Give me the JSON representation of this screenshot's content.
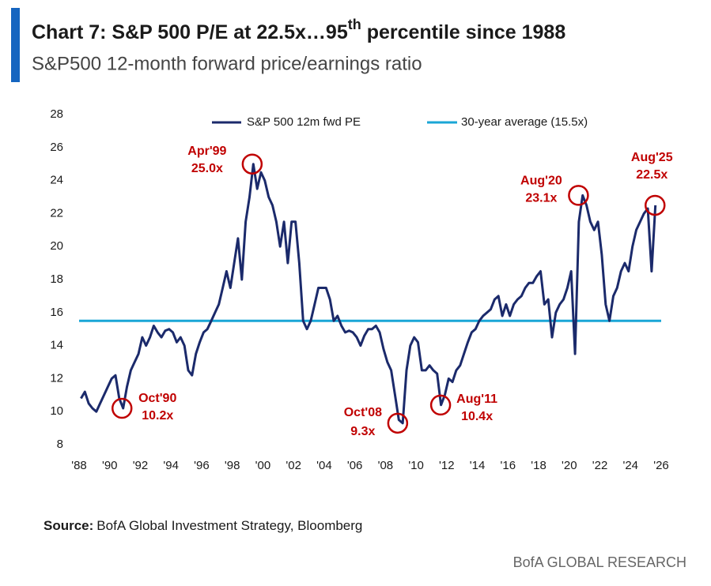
{
  "chart_data": {
    "type": "line",
    "title": [
      "Chart 7: S&P 500 P/E at 22.5x…95",
      "th",
      " percentile since 1988"
    ],
    "subtitle": "S&P500 12-month forward price/earnings ratio",
    "source": {
      "label": "Source:",
      "text": "BofA Global Investment Strategy, Bloomberg"
    },
    "brand": "BofA GLOBAL RESEARCH",
    "xlim": [
      1988,
      2026
    ],
    "xticks": [
      {
        "value": 1988,
        "label": "'88"
      },
      {
        "value": 1990,
        "label": "'90"
      },
      {
        "value": 1992,
        "label": "'92"
      },
      {
        "value": 1994,
        "label": "'94"
      },
      {
        "value": 1996,
        "label": "'96"
      },
      {
        "value": 1998,
        "label": "'98"
      },
      {
        "value": 2000,
        "label": "'00"
      },
      {
        "value": 2002,
        "label": "'02"
      },
      {
        "value": 2004,
        "label": "'04"
      },
      {
        "value": 2006,
        "label": "'06"
      },
      {
        "value": 2008,
        "label": "'08"
      },
      {
        "value": 2010,
        "label": "'10"
      },
      {
        "value": 2012,
        "label": "'12"
      },
      {
        "value": 2014,
        "label": "'14"
      },
      {
        "value": 2016,
        "label": "'16"
      },
      {
        "value": 2018,
        "label": "'18"
      },
      {
        "value": 2020,
        "label": "'20"
      },
      {
        "value": 2022,
        "label": "'22"
      },
      {
        "value": 2024,
        "label": "'24"
      },
      {
        "value": 2026,
        "label": "'26"
      }
    ],
    "ylim": [
      8,
      28
    ],
    "yticks": [
      8,
      10,
      12,
      14,
      16,
      18,
      20,
      22,
      24,
      26,
      28
    ],
    "grid": false,
    "series": [
      {
        "name": "S&P 500 12m fwd PE",
        "color": "#1b2a6b",
        "x": [
          1988.125,
          1988.375,
          1988.625,
          1988.875,
          1989.125,
          1989.375,
          1989.625,
          1989.875,
          1990.125,
          1990.375,
          1990.625,
          1990.875,
          1991.125,
          1991.375,
          1991.625,
          1991.875,
          1992.125,
          1992.375,
          1992.625,
          1992.875,
          1993.125,
          1993.375,
          1993.625,
          1993.875,
          1994.125,
          1994.375,
          1994.625,
          1994.875,
          1995.125,
          1995.375,
          1995.625,
          1995.875,
          1996.125,
          1996.375,
          1996.625,
          1996.875,
          1997.125,
          1997.375,
          1997.625,
          1997.875,
          1998.125,
          1998.375,
          1998.625,
          1998.875,
          1999.125,
          1999.375,
          1999.625,
          1999.875,
          2000.125,
          2000.375,
          2000.625,
          2000.875,
          2001.125,
          2001.375,
          2001.625,
          2001.875,
          2002.125,
          2002.375,
          2002.625,
          2002.875,
          2003.125,
          2003.375,
          2003.625,
          2003.875,
          2004.125,
          2004.375,
          2004.625,
          2004.875,
          2005.125,
          2005.375,
          2005.625,
          2005.875,
          2006.125,
          2006.375,
          2006.625,
          2006.875,
          2007.125,
          2007.375,
          2007.625,
          2007.875,
          2008.125,
          2008.375,
          2008.625,
          2008.875,
          2009.125,
          2009.375,
          2009.625,
          2009.875,
          2010.125,
          2010.375,
          2010.625,
          2010.875,
          2011.125,
          2011.375,
          2011.625,
          2011.875,
          2012.125,
          2012.375,
          2012.625,
          2012.875,
          2013.125,
          2013.375,
          2013.625,
          2013.875,
          2014.125,
          2014.375,
          2014.625,
          2014.875,
          2015.125,
          2015.375,
          2015.625,
          2015.875,
          2016.125,
          2016.375,
          2016.625,
          2016.875,
          2017.125,
          2017.375,
          2017.625,
          2017.875,
          2018.125,
          2018.375,
          2018.625,
          2018.875,
          2019.125,
          2019.375,
          2019.625,
          2019.875,
          2020.125,
          2020.375,
          2020.625,
          2020.875,
          2021.125,
          2021.375,
          2021.625,
          2021.875,
          2022.125,
          2022.375,
          2022.625,
          2022.875,
          2023.125,
          2023.375,
          2023.625,
          2023.875,
          2024.125,
          2024.375,
          2024.625,
          2024.875,
          2025.125,
          2025.375,
          2025.625
        ],
        "values": [
          10.8,
          11.2,
          10.5,
          10.2,
          10.0,
          10.5,
          11.0,
          11.5,
          12.0,
          12.2,
          10.8,
          10.2,
          11.5,
          12.5,
          13.0,
          13.5,
          14.5,
          14.0,
          14.5,
          15.2,
          14.8,
          14.5,
          14.9,
          15.0,
          14.8,
          14.2,
          14.5,
          14.0,
          12.5,
          12.2,
          13.5,
          14.2,
          14.8,
          15.0,
          15.5,
          16.0,
          16.5,
          17.5,
          18.5,
          17.5,
          19.0,
          20.5,
          18.0,
          21.5,
          23.0,
          25.0,
          23.5,
          24.5,
          24.0,
          23.0,
          22.5,
          21.5,
          20.0,
          21.5,
          19.0,
          21.5,
          21.5,
          19.0,
          15.5,
          15.0,
          15.5,
          16.5,
          17.5,
          17.5,
          17.5,
          16.8,
          15.5,
          15.8,
          15.2,
          14.8,
          14.9,
          14.8,
          14.5,
          14.0,
          14.6,
          15.0,
          15.0,
          15.2,
          14.8,
          13.8,
          13.0,
          12.5,
          11.0,
          9.5,
          9.3,
          12.5,
          14.0,
          14.5,
          14.2,
          12.5,
          12.5,
          12.8,
          12.5,
          12.3,
          10.4,
          11.0,
          12.0,
          11.8,
          12.5,
          12.8,
          13.5,
          14.2,
          14.8,
          15.0,
          15.5,
          15.8,
          16.0,
          16.2,
          16.8,
          17.0,
          15.8,
          16.5,
          15.8,
          16.5,
          16.8,
          17.0,
          17.5,
          17.8,
          17.8,
          18.2,
          18.5,
          16.5,
          16.8,
          14.5,
          16.0,
          16.5,
          16.8,
          17.5,
          18.5,
          13.5,
          21.5,
          23.1,
          22.5,
          21.5,
          21.0,
          21.5,
          19.5,
          16.5,
          15.5,
          17.0,
          17.5,
          18.5,
          19.0,
          18.5,
          20.0,
          21.0,
          21.5,
          22.0,
          22.3,
          18.5,
          22.5
        ]
      }
    ],
    "reference_line": {
      "name": "30-year average (15.5x)",
      "value": 15.5,
      "color": "#1aa6d6"
    },
    "annotation_color": "#c00000",
    "annotations": [
      {
        "x": 1990.8,
        "y": 10.2,
        "text": [
          "Oct'90",
          "10.2x"
        ]
      },
      {
        "x": 1999.3,
        "y": 25.0,
        "text": [
          "Apr'99",
          "25.0x"
        ]
      },
      {
        "x": 2008.8,
        "y": 9.3,
        "text": [
          "Oct'08",
          "9.3x"
        ]
      },
      {
        "x": 2011.6,
        "y": 10.4,
        "text": [
          "Aug'11",
          "10.4x"
        ]
      },
      {
        "x": 2020.6,
        "y": 23.1,
        "text": [
          "Aug'20",
          "23.1x"
        ]
      },
      {
        "x": 2025.6,
        "y": 22.5,
        "text": [
          "Aug'25",
          "22.5x"
        ]
      }
    ]
  }
}
